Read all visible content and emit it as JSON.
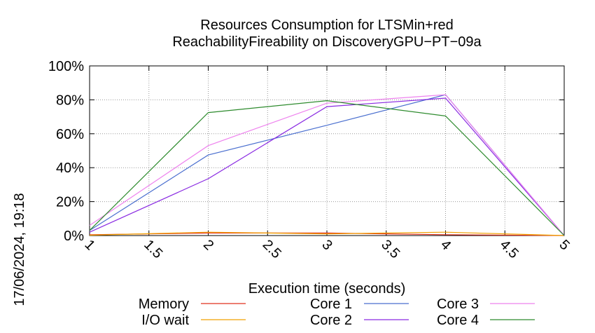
{
  "chart_data": {
    "type": "line",
    "title_line1": "Resources Consumption for LTSMin+red",
    "title_line2": "ReachabilityFireability on DiscoveryGPU−PT−09a",
    "xlabel": "Execution time (seconds)",
    "ylabel": "",
    "side_label": "17/06/2024, 19:18",
    "xlim": [
      1,
      5
    ],
    "ylim": [
      0,
      100
    ],
    "x_ticks": [
      "1",
      "1.5",
      "2",
      "2.5",
      "3",
      "3.5",
      "4",
      "4.5",
      "5"
    ],
    "y_ticks": [
      "0%",
      "20%",
      "40%",
      "60%",
      "80%",
      "100%"
    ],
    "grid": true,
    "legend_placement": "bottom",
    "series": [
      {
        "name": "Memory",
        "color": "#e0301e",
        "x": [
          1,
          2,
          3,
          4,
          5
        ],
        "y": [
          0.5,
          1.5,
          1.5,
          0.5,
          0
        ]
      },
      {
        "name": "I/O wait",
        "color": "#f0a000",
        "x": [
          1,
          2,
          3,
          4,
          5
        ],
        "y": [
          0.2,
          2,
          1,
          2,
          0
        ]
      },
      {
        "name": "Core 1",
        "color": "#4a6fcf",
        "x": [
          1,
          2,
          3,
          4,
          5
        ],
        "y": [
          3,
          47.5,
          65,
          83,
          0
        ]
      },
      {
        "name": "Core 2",
        "color": "#8a2be2",
        "x": [
          1,
          2,
          3,
          4,
          5
        ],
        "y": [
          2,
          33.5,
          76,
          81,
          0
        ]
      },
      {
        "name": "Core 3",
        "color": "#ee82ee",
        "x": [
          1,
          2,
          3,
          4,
          5
        ],
        "y": [
          6,
          53,
          78,
          83,
          0
        ]
      },
      {
        "name": "Core 4",
        "color": "#2e8b2e",
        "x": [
          1,
          2,
          3,
          4,
          5
        ],
        "y": [
          3,
          72.5,
          79.5,
          70.5,
          0
        ]
      }
    ]
  }
}
